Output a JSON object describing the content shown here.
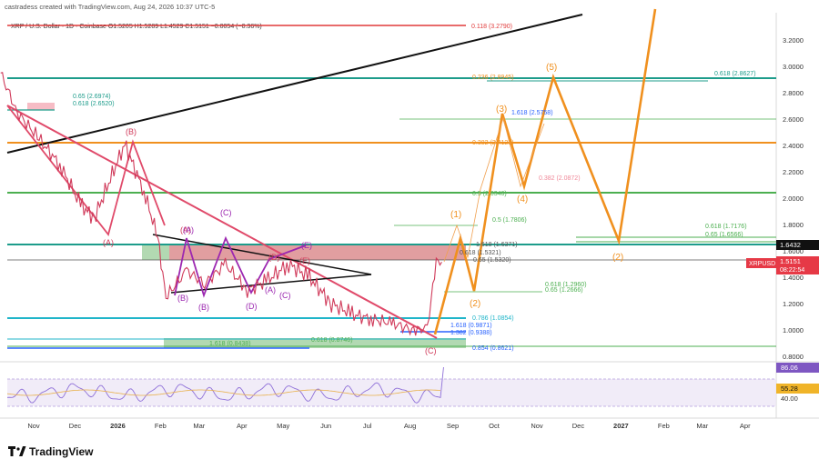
{
  "header": {
    "caption": "castradess created with TradingView.com, Aug 24, 2026 10:37 UTC-5",
    "symbol_line": "XRP / U.S. Dollar · 1D · Coinbase  O1.5205  H1.5289  L1.4529  C1.5151  −0.0054 (−0.36%)"
  },
  "brand": {
    "name": "TradingView"
  },
  "price_axis": {
    "ticks": [
      "3.2000",
      "3.0000",
      "2.8000",
      "2.6000",
      "2.4000",
      "2.2000",
      "2.0000",
      "1.8000",
      "1.6000",
      "1.4000",
      "1.2000",
      "1.0000",
      "0.8000"
    ],
    "current_price_label": "1.5151",
    "countdown": "08:22:54",
    "level_label": "1.6432",
    "symbol_tag": "XRPUSD"
  },
  "rsi_axis": {
    "value_label": "86.06",
    "ma_label": "55.28",
    "level_40": "40.00"
  },
  "time_axis": {
    "labels": [
      "Nov",
      "Dec",
      "2026",
      "Feb",
      "Mar",
      "Apr",
      "May",
      "Jun",
      "Jul",
      "Aug",
      "Sep",
      "Oct",
      "Nov",
      "Dec",
      "2027",
      "Feb",
      "Mar",
      "Apr"
    ]
  },
  "fib_labels": [
    "0.118 (3.2790)",
    "0.236 (2.8945)",
    "0.618 (2.8627)",
    "0.65 (2.6974)",
    "0.618 (2.6520)",
    "1.618 (2.5758)",
    "0.382 (2.4123)",
    "0.382 (2.0872)",
    "0.5 (2.0346)",
    "0.5 (1.7806)",
    "1.618 (1.6371)",
    "0.618 (1.5321)",
    "0.65 (1.5320)",
    "0.618 (1.7176)",
    "0.65 (1.6566)",
    "0.618 (1.2960)",
    "0.65 (1.2666)",
    "0.786 (1.0854)",
    "1.618 (0.9871)",
    "1.382 (0.9388)",
    "1.618 (0.8438)",
    "0.618 (0.8746)",
    "0.854 (0.8621)"
  ],
  "wave_labels": {
    "wave_1": "(1)",
    "wave_2": "(2)",
    "wave_3": "(3)",
    "wave_4": "(4)",
    "wave_5": "(5)",
    "wave_2_right": "(2)",
    "b_top": "(B)",
    "a_low": "(A)",
    "c_final": "(C)",
    "triangle_a": "(A)",
    "triangle_b": "(B)",
    "triangle_c": "(C)",
    "triangle_d": "(D)",
    "triangle_e": "(E)",
    "triangle_a2": "(A)",
    "triangle_b2": "(B)",
    "triangle_c2": "(C)",
    "triangle_d2": "(D)",
    "triangle_e2": "(E)"
  },
  "colors": {
    "price_line": "#d03a5a",
    "orange": "#f0901e",
    "green": "#4caf50",
    "teal": "#1d9c8b",
    "red_zone": "#f08a9a",
    "green_zone": "#7fbf7f",
    "purple": "#9c27b0",
    "black": "#111111",
    "blue": "#2962ff"
  },
  "chart_data": {
    "type": "line",
    "title": "XRP / U.S. Dollar · 1D · Coinbase",
    "xlabel": "",
    "ylabel": "",
    "ylim": [
      0.7,
      3.4
    ],
    "x": [
      "2025-10-08",
      "2025-10-20",
      "2025-11-05",
      "2025-11-20",
      "2025-12-05",
      "2025-12-15",
      "2026-01-06",
      "2026-01-20",
      "2026-01-30",
      "2026-02-05",
      "2026-02-20",
      "2026-03-05",
      "2026-03-20",
      "2026-04-05",
      "2026-04-20",
      "2026-05-05",
      "2026-05-20",
      "2026-06-05",
      "2026-06-20",
      "2026-07-05",
      "2026-07-20",
      "2026-08-05",
      "2026-08-12",
      "2026-08-15",
      "2026-08-20",
      "2026-08-24"
    ],
    "y": [
      2.95,
      2.65,
      2.45,
      2.25,
      1.95,
      1.85,
      2.41,
      2.05,
      1.7,
      1.25,
      1.45,
      1.35,
      1.5,
      1.3,
      1.38,
      1.5,
      1.4,
      1.2,
      1.12,
      1.08,
      1.05,
      0.99,
      1.02,
      1.1,
      1.55,
      1.5151
    ],
    "projection": {
      "x": [
        "2026-08-24",
        "2026-11-10",
        "2026-12-29",
        "2027-02-05"
      ],
      "y": [
        1.5151,
        2.89,
        1.64,
        3.35
      ]
    }
  }
}
